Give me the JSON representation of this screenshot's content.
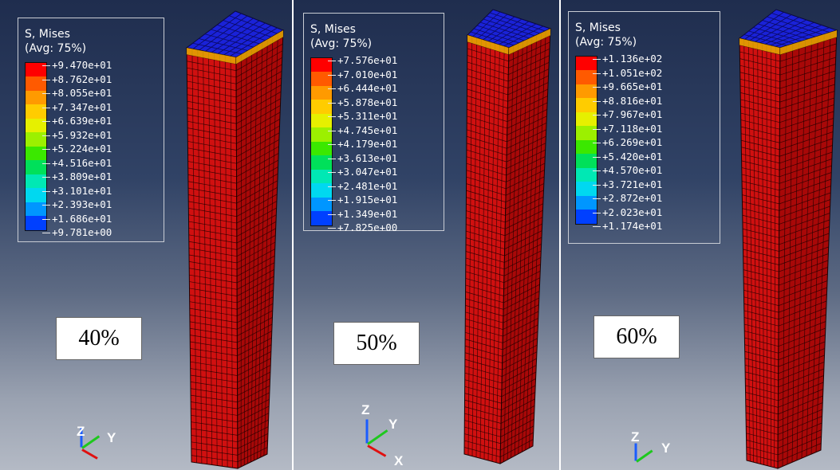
{
  "panels": [
    {
      "legend": {
        "title": "S, Mises",
        "avg": "(Avg: 75%)",
        "ticks": [
          "+9.470e+01",
          "+8.762e+01",
          "+8.055e+01",
          "+7.347e+01",
          "+6.639e+01",
          "+5.932e+01",
          "+5.224e+01",
          "+4.516e+01",
          "+3.809e+01",
          "+3.101e+01",
          "+2.393e+01",
          "+1.686e+01",
          "+9.781e+00"
        ]
      },
      "label": "40%",
      "triad": {
        "z": "Z",
        "y": "Y"
      }
    },
    {
      "legend": {
        "title": "S, Mises",
        "avg": "(Avg: 75%)",
        "ticks": [
          "+7.576e+01",
          "+7.010e+01",
          "+6.444e+01",
          "+5.878e+01",
          "+5.311e+01",
          "+4.745e+01",
          "+4.179e+01",
          "+3.613e+01",
          "+3.047e+01",
          "+2.481e+01",
          "+1.915e+01",
          "+1.349e+01",
          "+7.825e+00"
        ]
      },
      "label": "50%",
      "triad": {
        "z": "Z",
        "y": "Y",
        "x": "X"
      }
    },
    {
      "legend": {
        "title": "S, Mises",
        "avg": "(Avg: 75%)",
        "ticks": [
          "+1.136e+02",
          "+1.051e+02",
          "+9.665e+01",
          "+8.816e+01",
          "+7.967e+01",
          "+7.118e+01",
          "+6.269e+01",
          "+5.420e+01",
          "+4.570e+01",
          "+3.721e+01",
          "+2.872e+01",
          "+2.023e+01",
          "+1.174e+01"
        ]
      },
      "label": "60%",
      "triad": {
        "z": "Z",
        "y": "Y"
      }
    }
  ],
  "colors": {
    "contour_scale": [
      "#ff0000",
      "#ff5a00",
      "#ff9a00",
      "#ffcc00",
      "#e6f000",
      "#9cf000",
      "#3be800",
      "#00e05a",
      "#00e8b4",
      "#00d8f0",
      "#0096ff",
      "#0040ff"
    ],
    "column_red": "#d01010",
    "column_red_side": "#a80808",
    "mesh_line": "#1a0000",
    "column_top": "#1a22d8",
    "edge_yellow": "#e6b400",
    "axis_z": "#1a5cff",
    "axis_y": "#1ec81e",
    "axis_x": "#e01010"
  }
}
